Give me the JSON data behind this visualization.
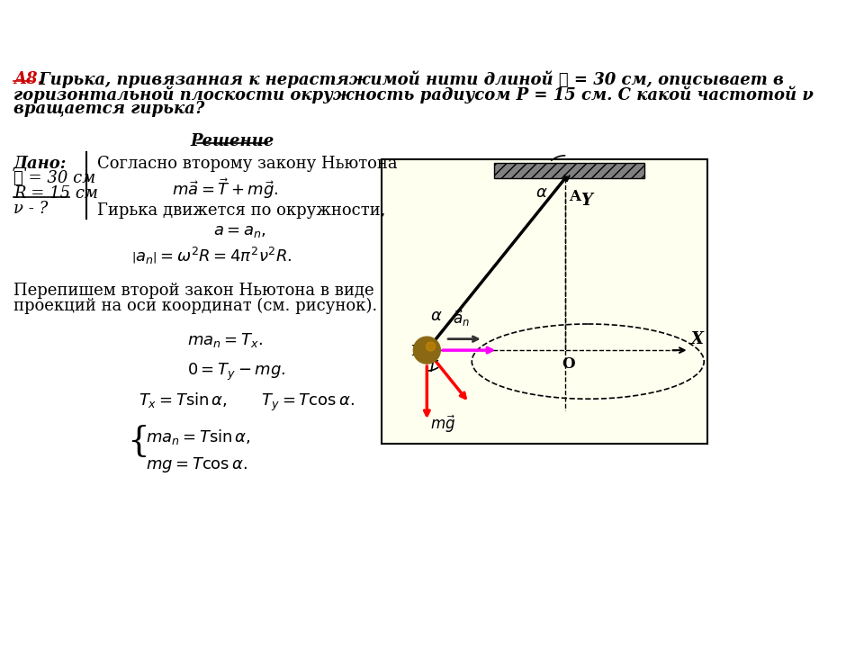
{
  "bg_color": "#fffff0",
  "page_bg": "#ffffff",
  "title_text": "A8.",
  "title_color": "#cc0000",
  "problem_text": " Гирька, привязанная к нерастяжимой нити длиной ℓ = 30 см, описывает в",
  "problem_text2": "горизонтальной плоскости окружность радиусом Р = 15 см. С какой частотой ν",
  "problem_text3": "вращается гирька?",
  "solution_label": "Решение",
  "given_label": "Дано:",
  "given_l": "ℓ = 30 см",
  "given_R": "R = 15 см",
  "given_nu": "ν - ?",
  "text1": "Согласно второму закону Ньютона",
  "eq1": "$m\\vec{a} = \\vec{T} + m\\vec{g}.$",
  "text2": "Гирька движется по окружности,",
  "eq2": "$a = a_n,$",
  "eq3": "$\\left|a_n\\right| = \\omega^2 R = 4\\pi^2\\nu^2 R.$",
  "text3": "Перепишем второй закон Ньютона в виде",
  "text4": "проекций на оси координат (см. рисунок).",
  "eq4": "$ma_n = T_x.$",
  "eq5": "$0 = T_y - mg.$",
  "eq6": "$T_x = T\\sin\\alpha,\\qquad T_y = T\\cos\\alpha.$",
  "eq7a": "$ma_n = T\\sin\\alpha,$",
  "eq7b": "$mg = T\\cos\\alpha.$"
}
